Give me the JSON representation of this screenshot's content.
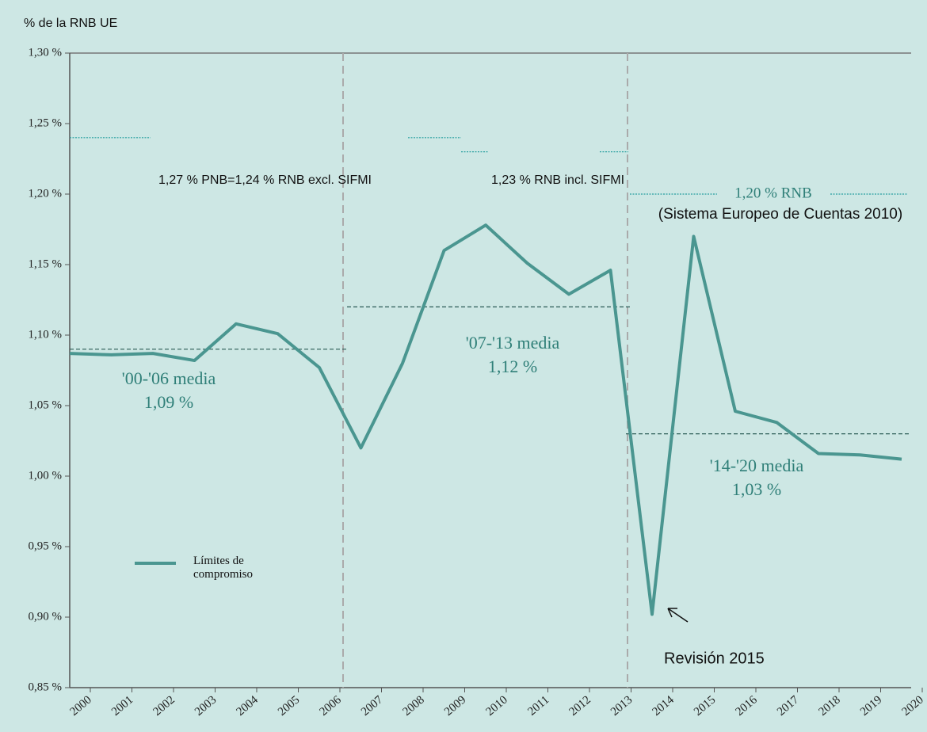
{
  "chart_data": {
    "type": "line",
    "y_label": "% de la RNB UE",
    "categories": [
      "2000",
      "2001",
      "2002",
      "2003",
      "2004",
      "2005",
      "2006",
      "2007",
      "2008",
      "2009",
      "2010",
      "2011",
      "2012",
      "2013",
      "2014",
      "2015",
      "2016",
      "2017",
      "2018",
      "2019",
      "2020"
    ],
    "series": [
      {
        "name": "Límites de compromiso",
        "color": "#4a9690",
        "values": [
          1.087,
          1.086,
          1.087,
          1.082,
          1.108,
          1.101,
          1.077,
          1.02,
          1.08,
          1.16,
          1.178,
          1.151,
          1.129,
          1.146,
          0.902,
          1.17,
          1.046,
          1.038,
          1.016,
          1.015,
          1.012
        ]
      }
    ],
    "ylim": [
      0.85,
      1.3
    ],
    "yticks": [
      {
        "value": 0.85,
        "label": "0,85 %"
      },
      {
        "value": 0.9,
        "label": "0,90 %"
      },
      {
        "value": 0.95,
        "label": "0,95 %"
      },
      {
        "value": 1.0,
        "label": "1,00 %"
      },
      {
        "value": 1.05,
        "label": "1,05 %"
      },
      {
        "value": 1.1,
        "label": "1,10 %"
      },
      {
        "value": 1.15,
        "label": "1,15 %"
      },
      {
        "value": 1.2,
        "label": "1,20 %"
      },
      {
        "value": 1.25,
        "label": "1,25 %"
      },
      {
        "value": 1.3,
        "label": "1,30 %"
      }
    ],
    "averages": [
      {
        "label": "'00-'06 media",
        "value": 1.09,
        "value_label": "1,09 %"
      },
      {
        "label": "'07-'13 media",
        "value": 1.12,
        "value_label": "1,12 %"
      },
      {
        "label": "'14-'20 media",
        "value": 1.03,
        "value_label": "1,03 %"
      }
    ],
    "ceilings": [
      {
        "label": "1,27 % PNB=1,24 % RNB excl. SIFMI",
        "value": 1.24
      },
      {
        "label": "1,23 % RNB incl. SIFMI",
        "value": 1.23
      },
      {
        "label": "1,20 % RNB",
        "value": 1.2,
        "note": "(Sistema Europeo de Cuentas 2010)"
      }
    ],
    "annotation": "Revisión 2015"
  }
}
